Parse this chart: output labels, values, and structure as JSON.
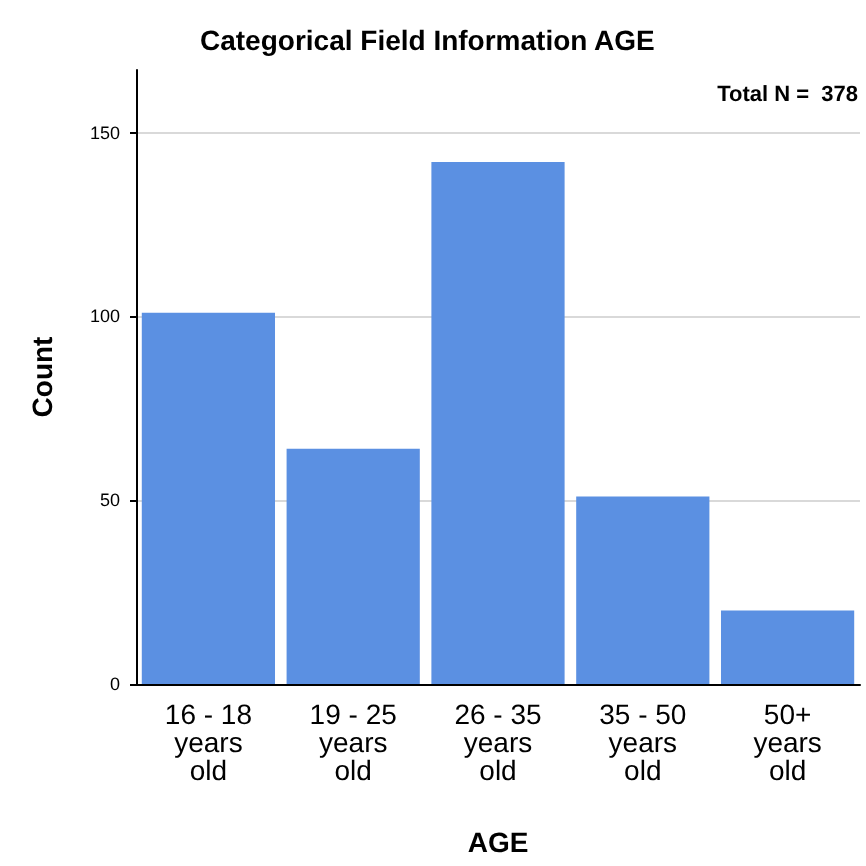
{
  "chart_data": {
    "type": "bar",
    "title": "Categorical Field Information AGE",
    "xlabel": "AGE",
    "ylabel": "Count",
    "categories": [
      "16 - 18\nyears\nold",
      "19 - 25\nyears\nold",
      "26 - 35\nyears\nold",
      "35 - 50\nyears\nold",
      "50+\nyears\nold"
    ],
    "values": [
      101,
      64,
      142,
      51,
      20
    ],
    "color": "#5b90e2",
    "ylim": [
      0,
      167
    ],
    "yticks": [
      0,
      50,
      100,
      150
    ],
    "grid": "y",
    "annotations": [
      "Total N =  378"
    ]
  }
}
